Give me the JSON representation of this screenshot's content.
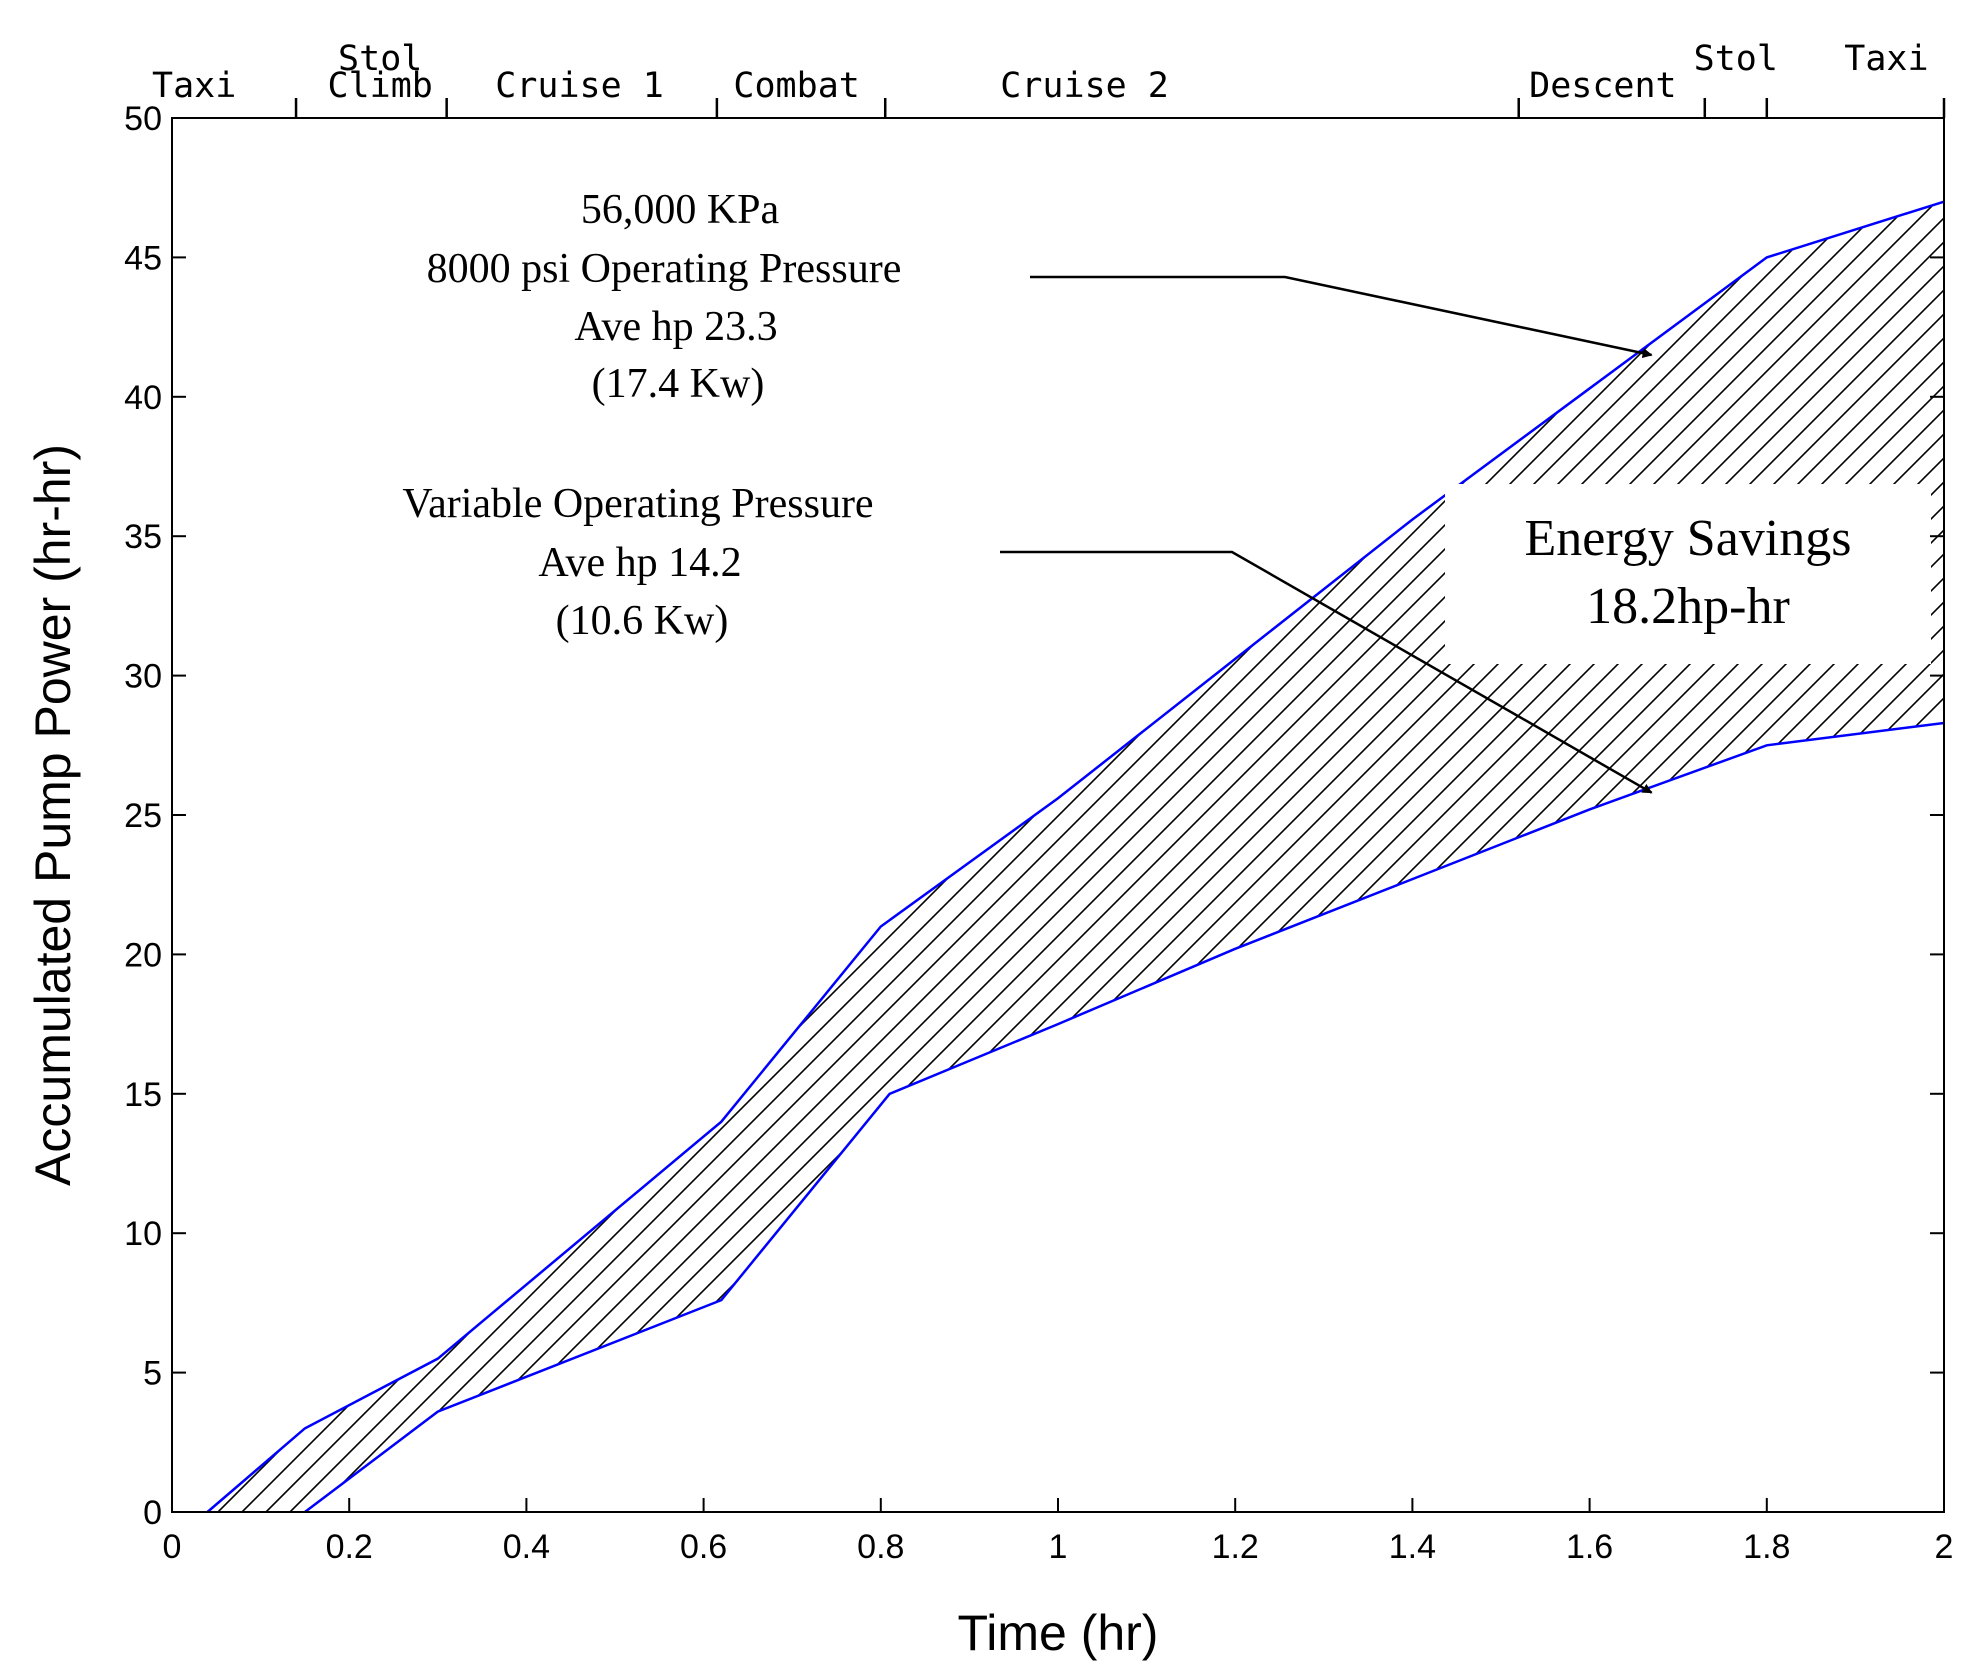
{
  "chart_data": {
    "type": "area",
    "title": "",
    "xlabel": "Time (hr)",
    "ylabel": "Accumulated Pump Power (hr-hr)",
    "xlim": [
      0,
      2
    ],
    "ylim": [
      0,
      50
    ],
    "x_ticks": [
      0,
      0.2,
      0.4,
      0.6,
      0.8,
      1,
      1.2,
      1.4,
      1.6,
      1.8,
      2
    ],
    "x_tick_labels": [
      "0",
      "0.2",
      "0.4",
      "0.6",
      "0.8",
      "1",
      "1.2",
      "1.4",
      "1.6",
      "1.8",
      "2"
    ],
    "y_ticks": [
      0,
      5,
      10,
      15,
      20,
      25,
      30,
      35,
      40,
      45,
      50
    ],
    "y_tick_labels": [
      "0",
      "5",
      "10",
      "15",
      "20",
      "25",
      "30",
      "35",
      "40",
      "45",
      "50"
    ],
    "grid": false,
    "series": [
      {
        "name": "8000 psi Operating Pressure",
        "color": "#0000ff",
        "x": [
          0.04,
          0.15,
          0.3,
          0.62,
          0.8,
          0.9,
          1.0,
          1.2,
          1.4,
          1.6,
          1.8,
          2.0
        ],
        "y": [
          0,
          3.0,
          5.5,
          14,
          21,
          23.3,
          25.6,
          30.6,
          35.6,
          40.3,
          45,
          47
        ]
      },
      {
        "name": "Variable Operating Pressure",
        "color": "#0000ff",
        "x": [
          0.15,
          0.3,
          0.62,
          0.81,
          1.0,
          1.2,
          1.4,
          1.6,
          1.8,
          2.0
        ],
        "y": [
          0,
          3.6,
          7.6,
          15,
          17.5,
          20.2,
          22.7,
          25.2,
          27.5,
          28.3
        ]
      }
    ],
    "phases": {
      "boundaries": [
        0.14,
        0.31,
        0.615,
        0.805,
        1.52,
        1.73,
        1.8
      ],
      "labels": [
        {
          "text": "Taxi",
          "x": 0.025
        },
        {
          "text": "Stol",
          "x": 0.235,
          "row": 2
        },
        {
          "text": "Climb",
          "x": 0.235
        },
        {
          "text": "Cruise 1",
          "x": 0.46
        },
        {
          "text": "Combat",
          "x": 0.705
        },
        {
          "text": "Cruise 2",
          "x": 1.03
        },
        {
          "text": "Descent",
          "x": 1.615
        },
        {
          "text": "Stol",
          "x": 1.765,
          "row": 2
        },
        {
          "text": "Taxi",
          "x": 1.935,
          "row": 2
        }
      ]
    },
    "annotations": {
      "constant": {
        "lines": [
          "56,000 KPa",
          "8000 psi Operating Pressure",
          "Ave hp 23.3",
          "(17.4 Kw)"
        ],
        "arrow_target": {
          "x": 1.67,
          "y": 41.5
        }
      },
      "variable": {
        "lines": [
          "Variable Operating Pressure",
          "Ave hp 14.2",
          "(10.6 Kw)"
        ],
        "arrow_target": {
          "x": 1.67,
          "y": 25.8
        }
      },
      "savings": {
        "lines": [
          "Energy Savings",
          "18.2hp-hr"
        ]
      }
    }
  }
}
